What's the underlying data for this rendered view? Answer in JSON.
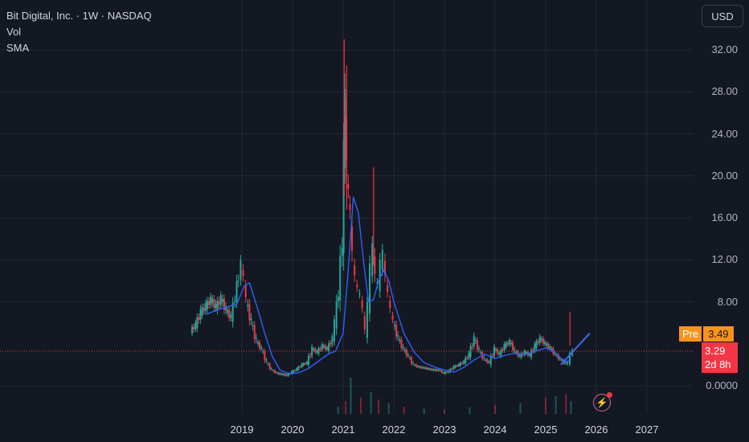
{
  "legend": {
    "title": "Bit Digital, Inc. · 1W · NASDAQ",
    "vol": "Vol",
    "sma": "SMA"
  },
  "currency_button": "USD",
  "price_labels": {
    "pre_tag": "Pre",
    "pre_value": "3.49",
    "last_value": "3.29",
    "countdown": "2d 8h"
  },
  "icons": {
    "flash": "lightning-icon"
  },
  "colors": {
    "background": "#141822",
    "up": "#26a69a",
    "down": "#f23645",
    "sma": "#2962ff",
    "pre": "#f7931a",
    "grid": "#242833"
  },
  "chart_data": {
    "type": "line",
    "title": "Bit Digital, Inc. · 1W · NASDAQ",
    "y_ticks": [
      "32.00",
      "28.00",
      "24.00",
      "20.00",
      "16.00",
      "12.00",
      "8.00",
      "0.0000"
    ],
    "x_ticks": [
      "2019",
      "2020",
      "2021",
      "2022",
      "2023",
      "2024",
      "2025",
      "2026",
      "2027"
    ],
    "ylim": [
      0,
      34
    ],
    "xlim": [
      2018.05,
      2027.55
    ],
    "last_price": 3.29,
    "premarket_price": 3.49,
    "series": [
      {
        "name": "Price",
        "x": [
          2018.0,
          2018.1,
          2018.2,
          2018.3,
          2018.4,
          2018.5,
          2018.6,
          2018.7,
          2018.8,
          2018.88,
          2018.95,
          2019.0,
          2019.05,
          2019.1,
          2019.2,
          2019.3,
          2019.4,
          2019.5,
          2019.6,
          2019.7,
          2019.8,
          2019.9,
          2020.0,
          2020.1,
          2020.2,
          2020.3,
          2020.4,
          2020.5,
          2020.6,
          2020.7,
          2020.8,
          2020.85,
          2020.92,
          2021.0,
          2021.02,
          2021.05,
          2021.08,
          2021.12,
          2021.15,
          2021.2,
          2021.25,
          2021.3,
          2021.35,
          2021.4,
          2021.45,
          2021.5,
          2021.55,
          2021.6,
          2021.65,
          2021.7,
          2021.75,
          2021.8,
          2021.85,
          2021.9,
          2021.95,
          2022.0,
          2022.1,
          2022.2,
          2022.3,
          2022.4,
          2022.5,
          2022.6,
          2022.7,
          2022.8,
          2022.9,
          2023.0,
          2023.1,
          2023.2,
          2023.3,
          2023.4,
          2023.5,
          2023.6,
          2023.7,
          2023.8,
          2023.9,
          2024.0,
          2024.1,
          2024.2,
          2024.3,
          2024.4,
          2024.5,
          2024.6,
          2024.7,
          2024.8,
          2024.9,
          2025.0,
          2025.1,
          2025.2,
          2025.3,
          2025.4,
          2025.45,
          2025.5,
          2025.55
        ],
        "values": [
          5.2,
          5.8,
          7.0,
          7.6,
          8.2,
          7.5,
          8.3,
          7.2,
          6.5,
          8.5,
          10.5,
          11.5,
          10.0,
          8.0,
          6.0,
          4.2,
          3.5,
          2.2,
          1.5,
          1.2,
          1.1,
          1.0,
          1.3,
          1.6,
          2.0,
          2.2,
          3.5,
          3.2,
          3.8,
          3.5,
          4.5,
          6.0,
          9.0,
          14.0,
          22.0,
          27.0,
          20.0,
          18.0,
          16.0,
          12.0,
          10.0,
          9.0,
          8.5,
          7.0,
          5.0,
          7.5,
          11.0,
          13.0,
          10.0,
          9.5,
          11.5,
          12.5,
          10.0,
          8.5,
          7.0,
          6.0,
          4.5,
          3.5,
          2.8,
          2.0,
          1.8,
          1.7,
          1.6,
          1.5,
          1.5,
          1.2,
          1.4,
          1.8,
          2.0,
          2.3,
          3.0,
          4.5,
          3.3,
          2.5,
          2.2,
          3.5,
          3.0,
          3.8,
          4.2,
          3.3,
          2.8,
          3.2,
          2.9,
          3.8,
          4.5,
          4.0,
          3.6,
          3.0,
          2.5,
          2.1,
          2.2,
          3.0,
          3.29
        ]
      },
      {
        "name": "SMA",
        "x": [
          2018.3,
          2018.5,
          2018.7,
          2018.9,
          2019.05,
          2019.15,
          2019.3,
          2019.45,
          2019.6,
          2019.75,
          2019.9,
          2020.1,
          2020.3,
          2020.5,
          2020.7,
          2020.85,
          2021.0,
          2021.1,
          2021.2,
          2021.3,
          2021.4,
          2021.5,
          2021.6,
          2021.7,
          2021.8,
          2021.9,
          2022.0,
          2022.2,
          2022.4,
          2022.6,
          2022.8,
          2023.0,
          2023.2,
          2023.4,
          2023.6,
          2023.8,
          2024.0,
          2024.2,
          2024.4,
          2024.6,
          2024.8,
          2025.0,
          2025.15,
          2025.3,
          2025.4,
          2025.5
        ],
        "values": [
          6.8,
          7.2,
          7.5,
          7.8,
          9.5,
          9.8,
          7.5,
          5.0,
          2.8,
          1.5,
          1.2,
          1.2,
          1.6,
          2.3,
          3.0,
          3.3,
          5.0,
          11.0,
          18.0,
          16.5,
          12.0,
          8.0,
          8.2,
          10.0,
          11.0,
          10.0,
          8.0,
          5.0,
          3.2,
          2.2,
          1.8,
          1.5,
          1.3,
          1.8,
          2.5,
          3.0,
          2.6,
          2.9,
          3.1,
          3.0,
          3.3,
          3.6,
          3.3,
          2.6,
          2.3,
          2.5
        ]
      }
    ],
    "volume": {
      "name": "Vol",
      "x": [
        2020.9,
        2021.05,
        2021.15,
        2021.35,
        2021.55,
        2021.7,
        2021.9,
        2022.2,
        2022.6,
        2023.0,
        2023.5,
        2024.0,
        2024.5,
        2025.0,
        2025.2,
        2025.4,
        2025.5
      ],
      "values": [
        0.2,
        0.35,
        1.0,
        0.45,
        0.6,
        0.4,
        0.3,
        0.2,
        0.15,
        0.12,
        0.18,
        0.25,
        0.3,
        0.45,
        0.5,
        0.55,
        0.35
      ]
    }
  }
}
